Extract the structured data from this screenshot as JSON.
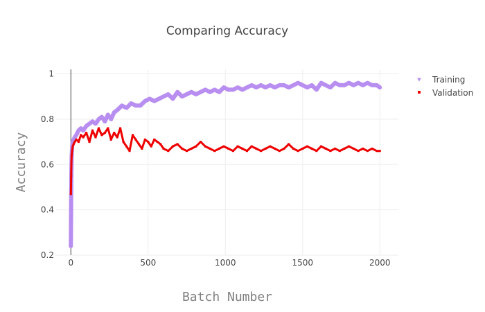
{
  "chart_data": {
    "type": "line",
    "title": "Comparing Accuracy",
    "xlabel": "Batch Number",
    "ylabel": "Accuracy",
    "xlim": [
      -100,
      2120
    ],
    "ylim": [
      0.2,
      1.02
    ],
    "x_ticks": [
      0,
      500,
      1000,
      1500,
      2000
    ],
    "y_ticks": [
      0.2,
      0.4,
      0.6,
      0.8,
      1
    ],
    "grid": true,
    "legend_position": "top-right",
    "series": [
      {
        "name": "Training",
        "color": "#b88ef0",
        "marker": "triangle",
        "x": [
          0,
          1,
          2,
          3,
          5,
          8,
          12,
          18,
          25,
          35,
          50,
          65,
          80,
          100,
          120,
          140,
          160,
          180,
          200,
          220,
          240,
          260,
          280,
          300,
          330,
          360,
          390,
          420,
          450,
          480,
          510,
          540,
          570,
          600,
          630,
          660,
          690,
          720,
          750,
          780,
          810,
          840,
          870,
          900,
          930,
          960,
          990,
          1020,
          1050,
          1080,
          1110,
          1140,
          1170,
          1200,
          1230,
          1260,
          1290,
          1320,
          1350,
          1380,
          1410,
          1440,
          1470,
          1500,
          1530,
          1560,
          1590,
          1620,
          1650,
          1680,
          1710,
          1740,
          1770,
          1800,
          1830,
          1860,
          1890,
          1920,
          1950,
          1980,
          2000
        ],
        "y": [
          0.24,
          0.35,
          0.44,
          0.55,
          0.63,
          0.68,
          0.7,
          0.71,
          0.72,
          0.73,
          0.75,
          0.76,
          0.75,
          0.77,
          0.78,
          0.79,
          0.78,
          0.8,
          0.81,
          0.79,
          0.82,
          0.8,
          0.83,
          0.84,
          0.86,
          0.85,
          0.87,
          0.86,
          0.86,
          0.88,
          0.89,
          0.88,
          0.89,
          0.9,
          0.91,
          0.89,
          0.92,
          0.9,
          0.91,
          0.92,
          0.91,
          0.92,
          0.93,
          0.92,
          0.93,
          0.92,
          0.94,
          0.93,
          0.93,
          0.94,
          0.93,
          0.94,
          0.95,
          0.94,
          0.95,
          0.94,
          0.95,
          0.94,
          0.95,
          0.95,
          0.94,
          0.95,
          0.96,
          0.95,
          0.94,
          0.95,
          0.93,
          0.96,
          0.95,
          0.94,
          0.96,
          0.95,
          0.95,
          0.96,
          0.95,
          0.96,
          0.95,
          0.96,
          0.95,
          0.95,
          0.94
        ]
      },
      {
        "name": "Validation",
        "color": "#ee0000",
        "marker": "square",
        "x": [
          0,
          1,
          2,
          3,
          5,
          8,
          12,
          18,
          25,
          35,
          50,
          65,
          80,
          100,
          120,
          140,
          160,
          180,
          200,
          220,
          240,
          260,
          280,
          300,
          320,
          340,
          360,
          380,
          400,
          420,
          440,
          460,
          480,
          500,
          520,
          540,
          560,
          580,
          600,
          630,
          660,
          690,
          720,
          750,
          780,
          810,
          840,
          870,
          900,
          930,
          960,
          990,
          1020,
          1050,
          1080,
          1110,
          1140,
          1170,
          1200,
          1230,
          1260,
          1290,
          1320,
          1350,
          1380,
          1410,
          1440,
          1470,
          1500,
          1530,
          1560,
          1590,
          1620,
          1650,
          1680,
          1710,
          1740,
          1770,
          1800,
          1830,
          1860,
          1890,
          1920,
          1950,
          1980,
          2000
        ],
        "y": [
          0.47,
          0.51,
          0.55,
          0.6,
          0.64,
          0.66,
          0.68,
          0.69,
          0.7,
          0.71,
          0.7,
          0.73,
          0.72,
          0.74,
          0.7,
          0.75,
          0.72,
          0.76,
          0.73,
          0.74,
          0.76,
          0.71,
          0.74,
          0.72,
          0.76,
          0.7,
          0.68,
          0.66,
          0.73,
          0.71,
          0.69,
          0.67,
          0.71,
          0.7,
          0.68,
          0.71,
          0.7,
          0.69,
          0.67,
          0.66,
          0.68,
          0.69,
          0.67,
          0.66,
          0.67,
          0.68,
          0.7,
          0.68,
          0.67,
          0.66,
          0.67,
          0.68,
          0.67,
          0.66,
          0.68,
          0.67,
          0.66,
          0.68,
          0.67,
          0.66,
          0.67,
          0.68,
          0.67,
          0.66,
          0.67,
          0.69,
          0.67,
          0.66,
          0.67,
          0.68,
          0.67,
          0.66,
          0.68,
          0.67,
          0.66,
          0.67,
          0.66,
          0.67,
          0.68,
          0.67,
          0.66,
          0.67,
          0.66,
          0.67,
          0.66,
          0.66
        ]
      }
    ]
  }
}
